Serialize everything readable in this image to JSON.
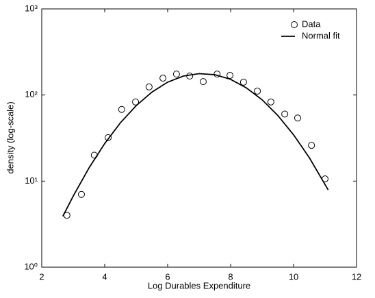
{
  "chart_data": {
    "type": "scatter",
    "xlabel": "Log Durables Expenditure",
    "ylabel": "density (log-scale)",
    "xlim": [
      2,
      12
    ],
    "xticks": [
      2,
      4,
      6,
      8,
      10,
      12
    ],
    "ylim": [
      1,
      1000
    ],
    "ylog": true,
    "yticks": [
      {
        "value": 1,
        "label": "10⁰"
      },
      {
        "value": 10,
        "label": "10¹"
      },
      {
        "value": 100,
        "label": "10²"
      },
      {
        "value": 1000,
        "label": "10³"
      }
    ],
    "grid": false,
    "legend": "upper right",
    "series": [
      {
        "name": "Data",
        "type": "scatter",
        "color": "#000000",
        "x": [
          2.8,
          3.26,
          3.67,
          4.11,
          4.54,
          4.98,
          5.41,
          5.85,
          6.28,
          6.7,
          7.13,
          7.57,
          7.98,
          8.41,
          8.85,
          9.28,
          9.72,
          10.13,
          10.57,
          11.0
        ],
        "values": [
          4,
          7,
          20,
          32,
          68,
          83,
          124,
          157,
          175,
          166,
          143,
          175,
          169,
          141,
          111,
          83,
          60,
          54,
          26,
          10.6
        ]
      },
      {
        "name": "Normal fit",
        "type": "line",
        "color": "#000000",
        "x": [
          2.67,
          3,
          3.5,
          4,
          4.5,
          5,
          5.5,
          6,
          6.5,
          7,
          7.5,
          8,
          8.5,
          9,
          9.5,
          10,
          10.5,
          11.1
        ],
        "values": [
          3.9,
          6.7,
          14.2,
          27.3,
          47.6,
          75.2,
          108,
          141,
          166,
          177,
          172,
          152,
          121,
          88,
          57.8,
          34.5,
          18.7,
          7.9
        ]
      }
    ]
  }
}
